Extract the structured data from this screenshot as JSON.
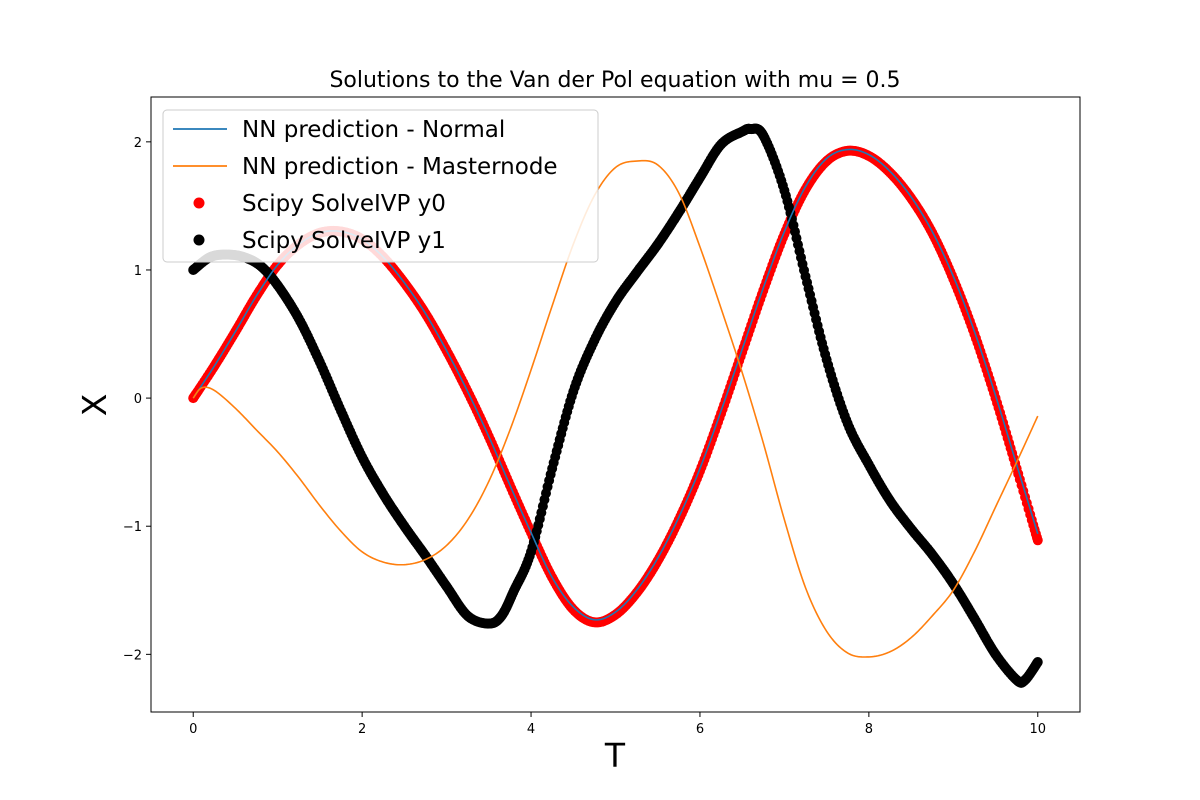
{
  "chart_data": {
    "type": "line",
    "title": "Solutions to the Van der Pol equation with mu = 0.5",
    "xlabel": "T",
    "ylabel": "X",
    "xlim": [
      -0.5,
      10.5
    ],
    "ylim": [
      -2.45,
      2.35
    ],
    "xticks": [
      0,
      2,
      4,
      6,
      8,
      10
    ],
    "xtick_labels": [
      "0",
      "2",
      "4",
      "6",
      "8",
      "10"
    ],
    "yticks": [
      -2,
      -1,
      0,
      1,
      2
    ],
    "ytick_labels": [
      "−2",
      "−1",
      "0",
      "1",
      "2"
    ],
    "grid": false,
    "legend_position": "upper-left",
    "series": [
      {
        "name": "NN prediction - Normal",
        "kind": "line",
        "color": "#1f77b4",
        "x": [
          0,
          0.25,
          0.5,
          0.75,
          1.0,
          1.25,
          1.5,
          1.75,
          2.0,
          2.25,
          2.5,
          2.75,
          3.0,
          3.25,
          3.5,
          3.75,
          4.0,
          4.25,
          4.5,
          4.75,
          5.0,
          5.25,
          5.5,
          5.75,
          6.0,
          6.25,
          6.5,
          6.75,
          7.0,
          7.25,
          7.5,
          7.75,
          8.0,
          8.25,
          8.5,
          8.75,
          9.0,
          9.25,
          9.5,
          9.75,
          10.0
        ],
        "y": [
          0.0,
          0.25,
          0.52,
          0.8,
          1.04,
          1.2,
          1.29,
          1.3,
          1.24,
          1.1,
          0.9,
          0.66,
          0.37,
          0.05,
          -0.3,
          -0.68,
          -1.05,
          -1.4,
          -1.63,
          -1.73,
          -1.67,
          -1.5,
          -1.25,
          -0.93,
          -0.55,
          -0.1,
          0.38,
          0.86,
          1.3,
          1.65,
          1.87,
          1.94,
          1.9,
          1.77,
          1.57,
          1.3,
          0.95,
          0.52,
          0.02,
          -0.52,
          -1.06
        ]
      },
      {
        "name": "NN prediction - Masternode",
        "kind": "line",
        "color": "#ff7f0e",
        "x": [
          0,
          0.1,
          0.25,
          0.5,
          0.75,
          1.0,
          1.25,
          1.5,
          1.75,
          2.0,
          2.25,
          2.5,
          2.75,
          3.0,
          3.25,
          3.5,
          3.75,
          4.0,
          4.25,
          4.5,
          4.75,
          5.0,
          5.25,
          5.5,
          5.75,
          6.0,
          6.25,
          6.5,
          6.75,
          7.0,
          7.25,
          7.5,
          7.75,
          8.0,
          8.25,
          8.5,
          8.75,
          9.0,
          9.25,
          9.5,
          9.75,
          10.0
        ],
        "y": [
          0.0,
          0.08,
          0.06,
          -0.08,
          -0.25,
          -0.42,
          -0.62,
          -0.84,
          -1.04,
          -1.2,
          -1.28,
          -1.3,
          -1.26,
          -1.15,
          -0.95,
          -0.65,
          -0.25,
          0.22,
          0.72,
          1.2,
          1.58,
          1.8,
          1.85,
          1.82,
          1.6,
          1.18,
          0.7,
          0.2,
          -0.35,
          -0.95,
          -1.48,
          -1.82,
          -1.99,
          -2.02,
          -1.98,
          -1.87,
          -1.7,
          -1.5,
          -1.2,
          -0.85,
          -0.5,
          -0.14
        ]
      },
      {
        "name": "Scipy SolveIVP y0",
        "kind": "scatter",
        "color": "#ff0000",
        "x": [
          0,
          0.25,
          0.5,
          0.75,
          1.0,
          1.25,
          1.5,
          1.75,
          2.0,
          2.25,
          2.5,
          2.75,
          3.0,
          3.25,
          3.5,
          3.75,
          4.0,
          4.25,
          4.5,
          4.75,
          5.0,
          5.25,
          5.5,
          5.75,
          6.0,
          6.25,
          6.5,
          6.75,
          7.0,
          7.25,
          7.5,
          7.75,
          8.0,
          8.25,
          8.5,
          8.75,
          9.0,
          9.25,
          9.5,
          9.75,
          10.0
        ],
        "y": [
          0.0,
          0.25,
          0.52,
          0.8,
          1.04,
          1.2,
          1.29,
          1.3,
          1.24,
          1.1,
          0.9,
          0.66,
          0.37,
          0.05,
          -0.3,
          -0.68,
          -1.05,
          -1.4,
          -1.65,
          -1.75,
          -1.69,
          -1.52,
          -1.27,
          -0.95,
          -0.57,
          -0.12,
          0.36,
          0.84,
          1.28,
          1.63,
          1.85,
          1.93,
          1.89,
          1.76,
          1.56,
          1.29,
          0.93,
          0.5,
          0.0,
          -0.55,
          -1.11
        ]
      },
      {
        "name": "Scipy SolveIVP y1",
        "kind": "scatter",
        "color": "#000000",
        "x": [
          0,
          0.2,
          0.4,
          0.6,
          0.8,
          1.0,
          1.25,
          1.5,
          1.75,
          2.0,
          2.25,
          2.5,
          2.75,
          3.0,
          3.25,
          3.5,
          3.65,
          3.8,
          4.0,
          4.25,
          4.5,
          4.75,
          5.0,
          5.25,
          5.5,
          5.75,
          6.0,
          6.25,
          6.5,
          6.6,
          6.75,
          7.0,
          7.25,
          7.5,
          7.75,
          8.0,
          8.25,
          8.5,
          8.75,
          9.0,
          9.25,
          9.5,
          9.75,
          9.85,
          10.0
        ],
        "y": [
          1.0,
          1.1,
          1.12,
          1.1,
          1.03,
          0.88,
          0.62,
          0.28,
          -0.1,
          -0.46,
          -0.75,
          -1.0,
          -1.23,
          -1.47,
          -1.7,
          -1.76,
          -1.7,
          -1.5,
          -1.2,
          -0.55,
          0.05,
          0.45,
          0.75,
          0.98,
          1.2,
          1.45,
          1.72,
          1.98,
          2.08,
          2.1,
          2.05,
          1.62,
          0.95,
          0.3,
          -0.2,
          -0.52,
          -0.8,
          -1.02,
          -1.22,
          -1.45,
          -1.72,
          -2.0,
          -2.2,
          -2.2,
          -2.06
        ]
      }
    ]
  }
}
